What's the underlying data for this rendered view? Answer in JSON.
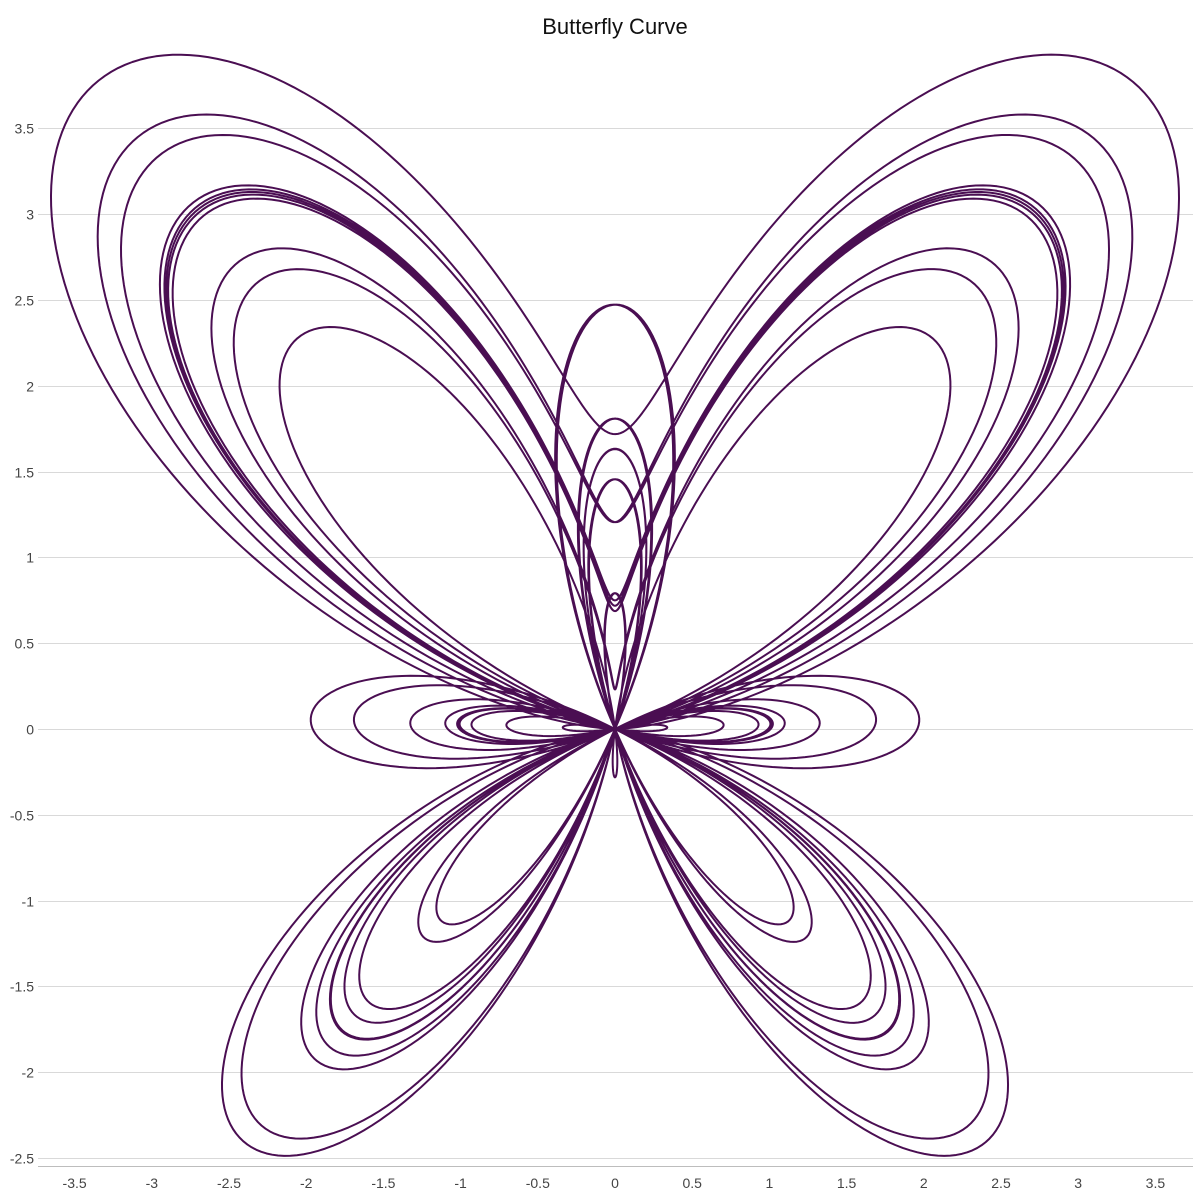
{
  "chart_data": {
    "type": "line",
    "title": "Butterfly Curve",
    "xlabel": "",
    "ylabel": "",
    "equation": {
      "x": "sin(t) * (exp(cos(t)) - 2*cos(4t) - sin(t/12)^5)",
      "y": "cos(t) * (exp(cos(t)) - 2*cos(4t) - sin(t/12)^5)",
      "t_range": [
        0,
        75.4
      ],
      "samples": 8000
    },
    "series": [
      {
        "color": "#4a0e52"
      }
    ],
    "xlim": [
      -3.85,
      3.85
    ],
    "ylim": [
      -2.55,
      4.0
    ],
    "x_ticks": [
      {
        "value": -3.5,
        "label": "-3.5"
      },
      {
        "value": -3,
        "label": "-3"
      },
      {
        "value": -2.5,
        "label": "-2.5"
      },
      {
        "value": -2,
        "label": "-2"
      },
      {
        "value": -1.5,
        "label": "-1.5"
      },
      {
        "value": -1,
        "label": "-1"
      },
      {
        "value": -0.5,
        "label": "-0.5"
      },
      {
        "value": 0,
        "label": "0"
      },
      {
        "value": 0.5,
        "label": "0.5"
      },
      {
        "value": 1,
        "label": "1"
      },
      {
        "value": 1.5,
        "label": "1.5"
      },
      {
        "value": 2,
        "label": "2"
      },
      {
        "value": 2.5,
        "label": "2.5"
      },
      {
        "value": 3,
        "label": "3"
      },
      {
        "value": 3.5,
        "label": "3.5"
      }
    ],
    "y_ticks": [
      {
        "value": 3.5,
        "label": "3.5"
      },
      {
        "value": 3,
        "label": "3"
      },
      {
        "value": 2.5,
        "label": "2.5"
      },
      {
        "value": 2,
        "label": "2"
      },
      {
        "value": 1.5,
        "label": "1.5"
      },
      {
        "value": 1,
        "label": "1"
      },
      {
        "value": 0.5,
        "label": "0.5"
      },
      {
        "value": 0,
        "label": "0"
      },
      {
        "value": -0.5,
        "label": "-0.5"
      },
      {
        "value": -1,
        "label": "-1"
      },
      {
        "value": -1.5,
        "label": "-1.5"
      },
      {
        "value": -2,
        "label": "-2"
      },
      {
        "value": -2.5,
        "label": "-2.5"
      }
    ],
    "grid": "horizontal",
    "legend": "none"
  }
}
